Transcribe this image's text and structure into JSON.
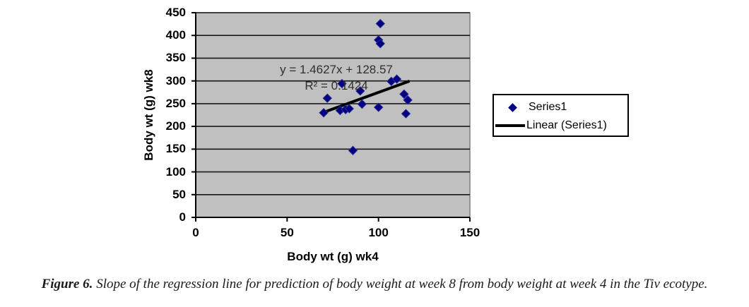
{
  "chart_data": {
    "type": "scatter",
    "title": "",
    "xlabel": "Body wt (g) wk4",
    "ylabel": "Body wt (g) wk8",
    "xlim": [
      0,
      150
    ],
    "ylim": [
      0,
      450
    ],
    "x_ticks": [
      0,
      50,
      100,
      150
    ],
    "y_ticks": [
      0,
      50,
      100,
      150,
      200,
      250,
      300,
      350,
      400,
      450
    ],
    "grid": "horizontal",
    "legend_position": "right",
    "series": [
      {
        "name": "Series1",
        "marker": "diamond",
        "points": [
          [
            70,
            230
          ],
          [
            72,
            262
          ],
          [
            79,
            235
          ],
          [
            82,
            237
          ],
          [
            84,
            239
          ],
          [
            80,
            294
          ],
          [
            86,
            147
          ],
          [
            90,
            278
          ],
          [
            91,
            249
          ],
          [
            100,
            242
          ],
          [
            100,
            390
          ],
          [
            101,
            382
          ],
          [
            101,
            426
          ],
          [
            107,
            299
          ],
          [
            110,
            304
          ],
          [
            114,
            271
          ],
          [
            116,
            258
          ],
          [
            115,
            228
          ]
        ]
      }
    ],
    "trendline": {
      "name": "Linear (Series1)",
      "slope": 1.4627,
      "intercept": 128.57,
      "x_start": 70,
      "x_end": 117,
      "equation_label": "y = 1.4627x + 128.57",
      "r_squared_label": "R² = 0.1424"
    },
    "colors": {
      "marker": "#000080",
      "trendline": "#000000",
      "plot_bg": "#c0c0c0",
      "gridline": "#1a1a1a",
      "plot_border": "#7f7f7f",
      "axis": "#000000"
    }
  },
  "legend": {
    "items": [
      {
        "label": "Series1",
        "marker": "diamond"
      },
      {
        "label": "Linear (Series1)",
        "marker": "line"
      }
    ]
  },
  "caption": {
    "prefix": "Figure 6.",
    "text": " Slope of the regression line for prediction of body weight at week 8 from body weight at week 4 in the Tiv ecotype."
  }
}
